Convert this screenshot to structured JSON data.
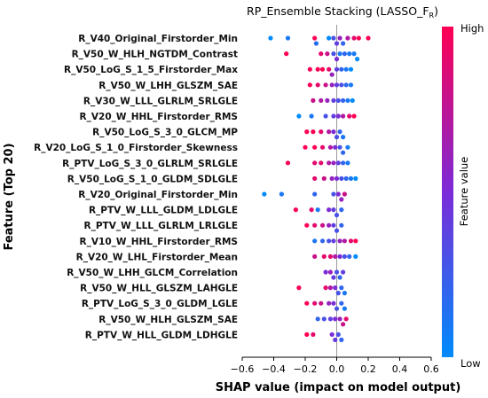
{
  "chart_data": {
    "type": "scatter",
    "title": "RP_Ensemble Stacking (LASSO_F",
    "title_subscript": "R",
    "title_suffix": ")",
    "xlabel": "SHAP value (impact on model output)",
    "ylabel": "Feature (Top 20)",
    "xlim": [
      -0.6,
      0.6
    ],
    "xticks": [
      "-0.6",
      "-0.4",
      "-0.2",
      "0.0",
      "0.2",
      "0.4",
      "0.6"
    ],
    "xtick_values": [
      -0.6,
      -0.4,
      -0.2,
      0.0,
      0.2,
      0.4,
      0.6
    ],
    "colorbar": {
      "label": "Feature value",
      "high": "High",
      "low": "Low",
      "high_color": "#ff0052",
      "mid_color": "#7b2bd8",
      "low_color": "#008bfb"
    },
    "features": [
      {
        "name": "R_V40_Original_Firstorder_Min",
        "points": [
          [
            -0.42,
            0.0
          ],
          [
            -0.31,
            0.1
          ],
          [
            -0.14,
            1.0
          ],
          [
            -0.13,
            0.15
          ],
          [
            -0.05,
            0.0
          ],
          [
            -0.02,
            0.3
          ],
          [
            0.0,
            0.4
          ],
          [
            0.02,
            0.6
          ],
          [
            0.04,
            0.2
          ],
          [
            0.07,
            0.7
          ],
          [
            0.11,
            0.9
          ],
          [
            0.14,
            1.0
          ],
          [
            0.2,
            1.0
          ]
        ]
      },
      {
        "name": "R_V50_W_HLH_NGTDM_Contrast",
        "points": [
          [
            -0.32,
            1.0
          ],
          [
            -0.1,
            0.9
          ],
          [
            -0.06,
            0.8
          ],
          [
            -0.02,
            0.3
          ],
          [
            0.0,
            0.5
          ],
          [
            0.02,
            0.1
          ],
          [
            0.05,
            0.2
          ],
          [
            0.08,
            0.1
          ],
          [
            0.11,
            0.1
          ],
          [
            0.13,
            0.0
          ]
        ]
      },
      {
        "name": "R_V50_LoG_S_1_5_Firstorder_Max",
        "points": [
          [
            -0.17,
            1.0
          ],
          [
            -0.12,
            1.0
          ],
          [
            -0.09,
            1.0
          ],
          [
            -0.05,
            0.9
          ],
          [
            -0.03,
            0.6
          ],
          [
            0.0,
            0.4
          ],
          [
            0.03,
            0.2
          ],
          [
            0.06,
            0.1
          ],
          [
            0.09,
            0.0
          ]
        ]
      },
      {
        "name": "R_V50_W_LHH_GLSZM_SAE",
        "points": [
          [
            -0.17,
            1.0
          ],
          [
            -0.12,
            0.9
          ],
          [
            -0.07,
            0.8
          ],
          [
            -0.03,
            0.6
          ],
          [
            0.0,
            0.4
          ],
          [
            0.03,
            0.3
          ],
          [
            0.06,
            0.2
          ],
          [
            0.09,
            0.1
          ]
        ]
      },
      {
        "name": "R_V30_W_LLL_GLRLM_SRLGLE",
        "points": [
          [
            -0.15,
            0.8
          ],
          [
            -0.1,
            0.7
          ],
          [
            -0.06,
            0.6
          ],
          [
            -0.02,
            0.4
          ],
          [
            0.01,
            0.3
          ],
          [
            0.04,
            0.2
          ],
          [
            0.07,
            0.1
          ],
          [
            0.1,
            0.0
          ]
        ]
      },
      {
        "name": "R_V20_W_HHL_Firstorder_RMS",
        "points": [
          [
            -0.24,
            0.0
          ],
          [
            -0.16,
            0.1
          ],
          [
            -0.07,
            0.3
          ],
          [
            -0.02,
            0.4
          ],
          [
            0.01,
            0.5
          ],
          [
            0.04,
            0.7
          ],
          [
            0.08,
            0.9
          ],
          [
            0.11,
            1.0
          ]
        ]
      },
      {
        "name": "R_V50_LoG_S_3_0_GLCM_MP",
        "points": [
          [
            -0.19,
            1.0
          ],
          [
            -0.15,
            1.0
          ],
          [
            -0.1,
            0.9
          ],
          [
            -0.05,
            0.7
          ],
          [
            -0.02,
            0.5
          ],
          [
            0.0,
            0.3
          ],
          [
            0.02,
            0.2
          ],
          [
            0.04,
            0.1
          ]
        ]
      },
      {
        "name": "R_V20_LoG_S_1_0_Firstorder_Skewness",
        "points": [
          [
            -0.2,
            1.0
          ],
          [
            -0.14,
            1.0
          ],
          [
            -0.09,
            0.9
          ],
          [
            -0.04,
            0.7
          ],
          [
            -0.01,
            0.5
          ],
          [
            0.02,
            0.3
          ],
          [
            0.04,
            0.2
          ],
          [
            0.07,
            0.1
          ]
        ]
      },
      {
        "name": "R_PTV_LoG_S_3_0_GLRLM_SRLGLE",
        "points": [
          [
            -0.31,
            1.0
          ],
          [
            -0.14,
            0.9
          ],
          [
            -0.1,
            0.9
          ],
          [
            -0.05,
            0.7
          ],
          [
            -0.02,
            0.6
          ],
          [
            0.01,
            0.4
          ],
          [
            0.04,
            0.2
          ],
          [
            0.07,
            0.1
          ]
        ]
      },
      {
        "name": "R_V50_LoG_S_1_0_GLDM_SDLGLE",
        "points": [
          [
            -0.14,
            0.9
          ],
          [
            -0.08,
            0.8
          ],
          [
            -0.03,
            0.6
          ],
          [
            0.0,
            0.5
          ],
          [
            0.03,
            0.3
          ],
          [
            0.06,
            0.2
          ],
          [
            0.09,
            0.1
          ],
          [
            0.12,
            0.0
          ]
        ]
      },
      {
        "name": "R_V20_Original_Firstorder_Min",
        "points": [
          [
            -0.46,
            0.0
          ],
          [
            -0.35,
            0.1
          ],
          [
            -0.14,
            0.2
          ],
          [
            -0.02,
            0.3
          ],
          [
            0.01,
            0.5
          ],
          [
            0.03,
            0.6
          ],
          [
            0.05,
            0.8
          ]
        ]
      },
      {
        "name": "R_PTV_W_LLL_GLDM_LDLGLE",
        "points": [
          [
            -0.26,
            1.0
          ],
          [
            -0.16,
            0.9
          ],
          [
            -0.12,
            0.1
          ],
          [
            -0.05,
            0.5
          ],
          [
            -0.02,
            0.4
          ],
          [
            0.0,
            0.3
          ],
          [
            0.03,
            0.2
          ]
        ]
      },
      {
        "name": "R_PTV_W_LLL_GLRLM_LRLGLE",
        "points": [
          [
            -0.19,
            1.0
          ],
          [
            -0.14,
            0.9
          ],
          [
            -0.09,
            0.8
          ],
          [
            -0.05,
            0.6
          ],
          [
            -0.02,
            0.4
          ],
          [
            0.0,
            0.3
          ],
          [
            0.03,
            0.2
          ]
        ]
      },
      {
        "name": "R_V10_W_HHL_Firstorder_RMS",
        "points": [
          [
            -0.14,
            0.1
          ],
          [
            -0.09,
            0.2
          ],
          [
            -0.05,
            0.3
          ],
          [
            -0.02,
            0.4
          ],
          [
            0.02,
            0.6
          ],
          [
            0.05,
            0.7
          ],
          [
            0.09,
            0.9
          ],
          [
            0.12,
            1.0
          ]
        ]
      },
      {
        "name": "R_V20_W_LHL_Firstorder_Mean",
        "points": [
          [
            -0.14,
            0.8
          ],
          [
            -0.08,
            0.9
          ],
          [
            -0.04,
            0.9
          ],
          [
            -0.01,
            0.7
          ],
          [
            0.02,
            0.5
          ],
          [
            0.05,
            0.3
          ],
          [
            0.08,
            0.2
          ],
          [
            0.12,
            0.0
          ]
        ]
      },
      {
        "name": "R_V50_W_LHH_GLCM_Correlation",
        "points": [
          [
            -0.07,
            0.5
          ],
          [
            -0.04,
            0.6
          ],
          [
            -0.02,
            0.4
          ],
          [
            0.0,
            0.3
          ],
          [
            0.02,
            0.2
          ],
          [
            0.04,
            0.4
          ]
        ]
      },
      {
        "name": "R_V50_W_HLL_GLSZM_LAHGLE",
        "points": [
          [
            -0.24,
            1.0
          ],
          [
            -0.07,
            0.9
          ],
          [
            -0.04,
            0.7
          ],
          [
            -0.01,
            0.5
          ],
          [
            0.01,
            0.3
          ],
          [
            0.03,
            0.2
          ],
          [
            0.05,
            0.1
          ]
        ]
      },
      {
        "name": "R_PTV_LoG_S_3_0_GLDM_LGLE",
        "points": [
          [
            -0.19,
            1.0
          ],
          [
            -0.14,
            0.9
          ],
          [
            -0.1,
            0.8
          ],
          [
            -0.05,
            0.6
          ],
          [
            -0.02,
            0.5
          ],
          [
            0.0,
            0.3
          ],
          [
            0.03,
            0.2
          ],
          [
            0.05,
            0.1
          ]
        ]
      },
      {
        "name": "R_V50_W_HLH_GLSZM_SAE",
        "points": [
          [
            -0.12,
            0.2
          ],
          [
            -0.08,
            0.3
          ],
          [
            -0.04,
            0.4
          ],
          [
            -0.01,
            0.5
          ],
          [
            0.02,
            0.6
          ],
          [
            0.04,
            0.8
          ],
          [
            0.06,
            0.9
          ]
        ]
      },
      {
        "name": "R_PTV_W_HLL_GLDM_LDHGLE",
        "points": [
          [
            -0.19,
            1.0
          ],
          [
            -0.15,
            0.9
          ],
          [
            -0.03,
            0.5
          ],
          [
            -0.01,
            0.4
          ],
          [
            0.01,
            0.3
          ],
          [
            0.03,
            0.2
          ]
        ]
      }
    ]
  }
}
